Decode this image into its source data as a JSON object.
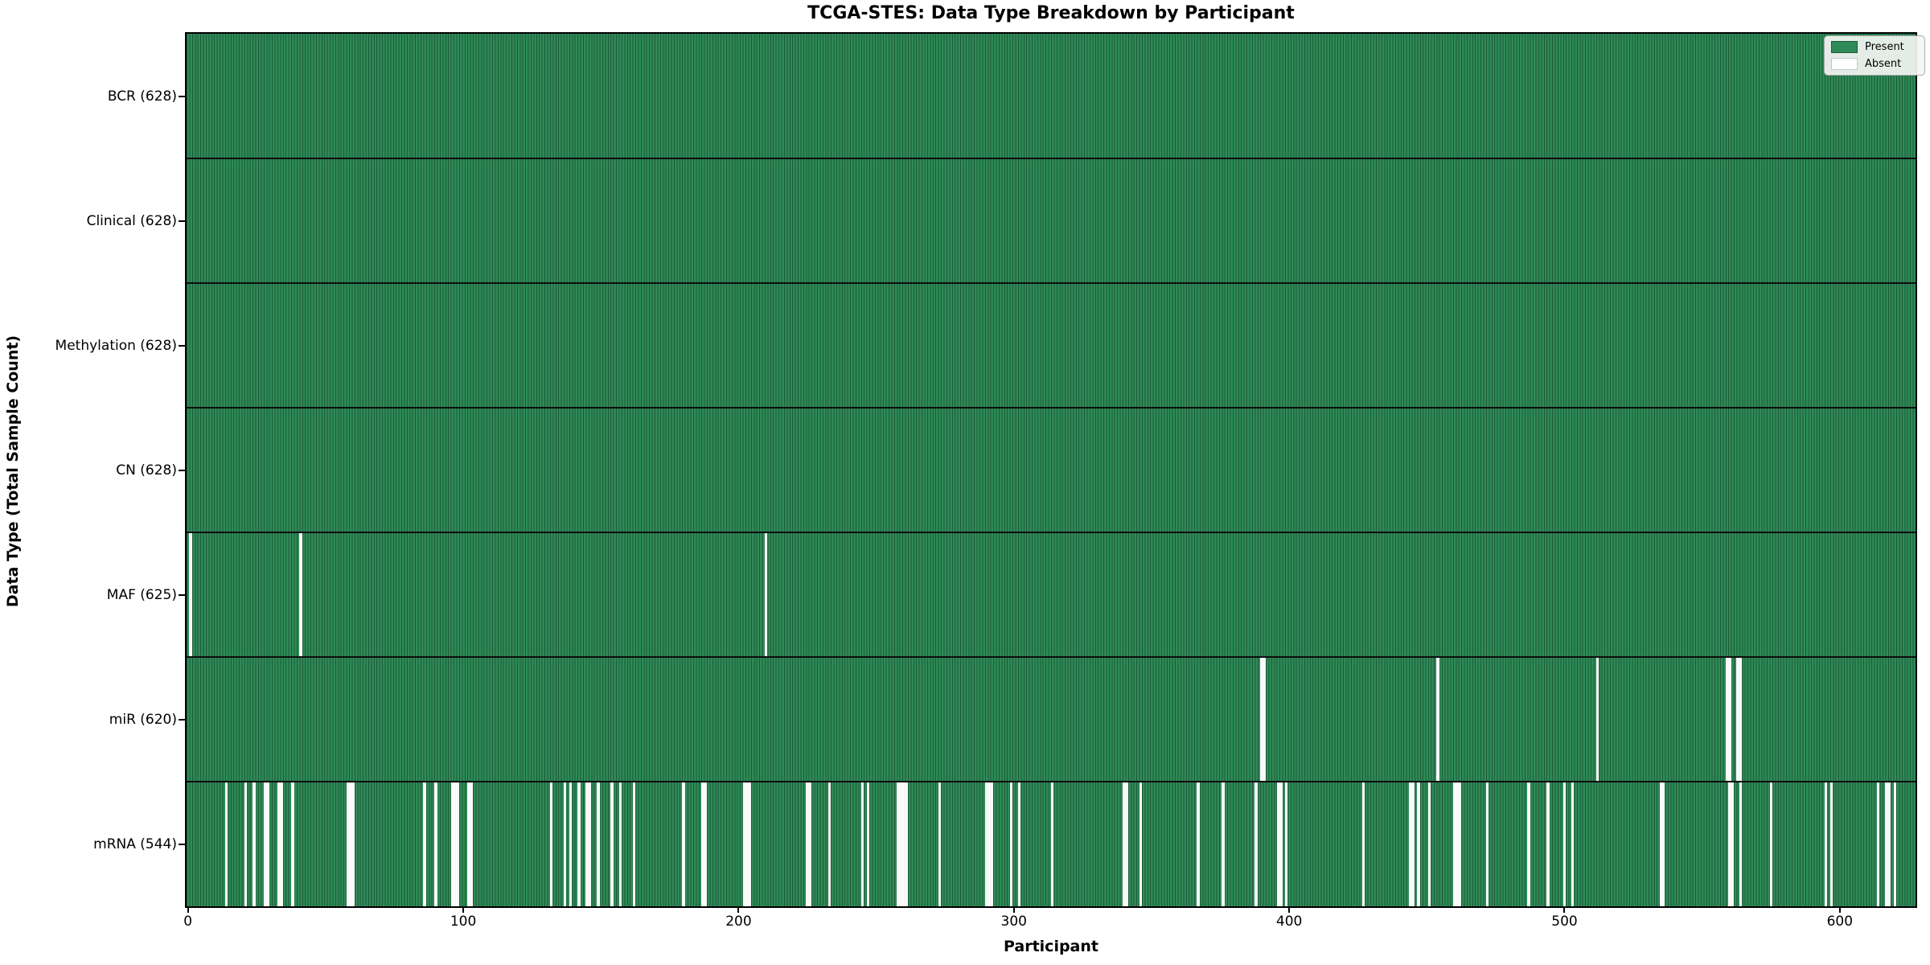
{
  "title": "TCGA-STES: Data Type Breakdown by Participant",
  "legend": {
    "present": "Present",
    "absent": "Absent"
  },
  "colors": {
    "present": "#2e8b57",
    "present_edge": "#1d5a38",
    "absent": "#fafafa",
    "divider": "#0d0d0d",
    "spine": "#000000"
  },
  "chart_data": {
    "type": "heatmap",
    "title": "TCGA-STES: Data Type Breakdown by Participant",
    "xlabel": "Participant",
    "ylabel": "Data Type (Total Sample Count)",
    "legend_entries": [
      "Present",
      "Absent"
    ],
    "legend_position": "upper right",
    "n_participants": 628,
    "x_range": [
      -0.5,
      627.5
    ],
    "x_ticks": [
      0,
      100,
      200,
      300,
      400,
      500,
      600
    ],
    "rows": [
      {
        "label": "BCR (628)",
        "data_type": "BCR",
        "present_count": 628,
        "absent_participants": []
      },
      {
        "label": "Clinical (628)",
        "data_type": "Clinical",
        "present_count": 628,
        "absent_participants": []
      },
      {
        "label": "Methylation (628)",
        "data_type": "Methylation",
        "present_count": 628,
        "absent_participants": []
      },
      {
        "label": "CN (628)",
        "data_type": "CN",
        "present_count": 628,
        "absent_participants": []
      },
      {
        "label": "MAF (625)",
        "data_type": "MAF",
        "present_count": 625,
        "absent_participants": [
          1,
          41,
          210
        ]
      },
      {
        "label": "miR (620)",
        "data_type": "miR",
        "present_count": 620,
        "absent_participants": [
          390,
          391,
          454,
          512,
          559,
          560,
          563,
          564
        ]
      },
      {
        "label": "mRNA (544)",
        "data_type": "mRNA",
        "present_count": 544,
        "absent_participants": [
          14,
          21,
          24,
          28,
          29,
          33,
          34,
          38,
          58,
          59,
          60,
          86,
          90,
          96,
          97,
          98,
          102,
          103,
          132,
          137,
          139,
          142,
          145,
          146,
          149,
          154,
          157,
          162,
          180,
          187,
          188,
          202,
          203,
          204,
          225,
          226,
          233,
          245,
          247,
          258,
          259,
          260,
          261,
          273,
          290,
          291,
          292,
          299,
          302,
          314,
          340,
          341,
          346,
          367,
          376,
          388,
          396,
          397,
          399,
          427,
          444,
          445,
          447,
          451,
          460,
          461,
          462,
          472,
          487,
          494,
          500,
          503,
          535,
          536,
          560,
          561,
          564,
          575,
          595,
          597,
          614,
          617,
          618,
          620
        ]
      }
    ]
  }
}
